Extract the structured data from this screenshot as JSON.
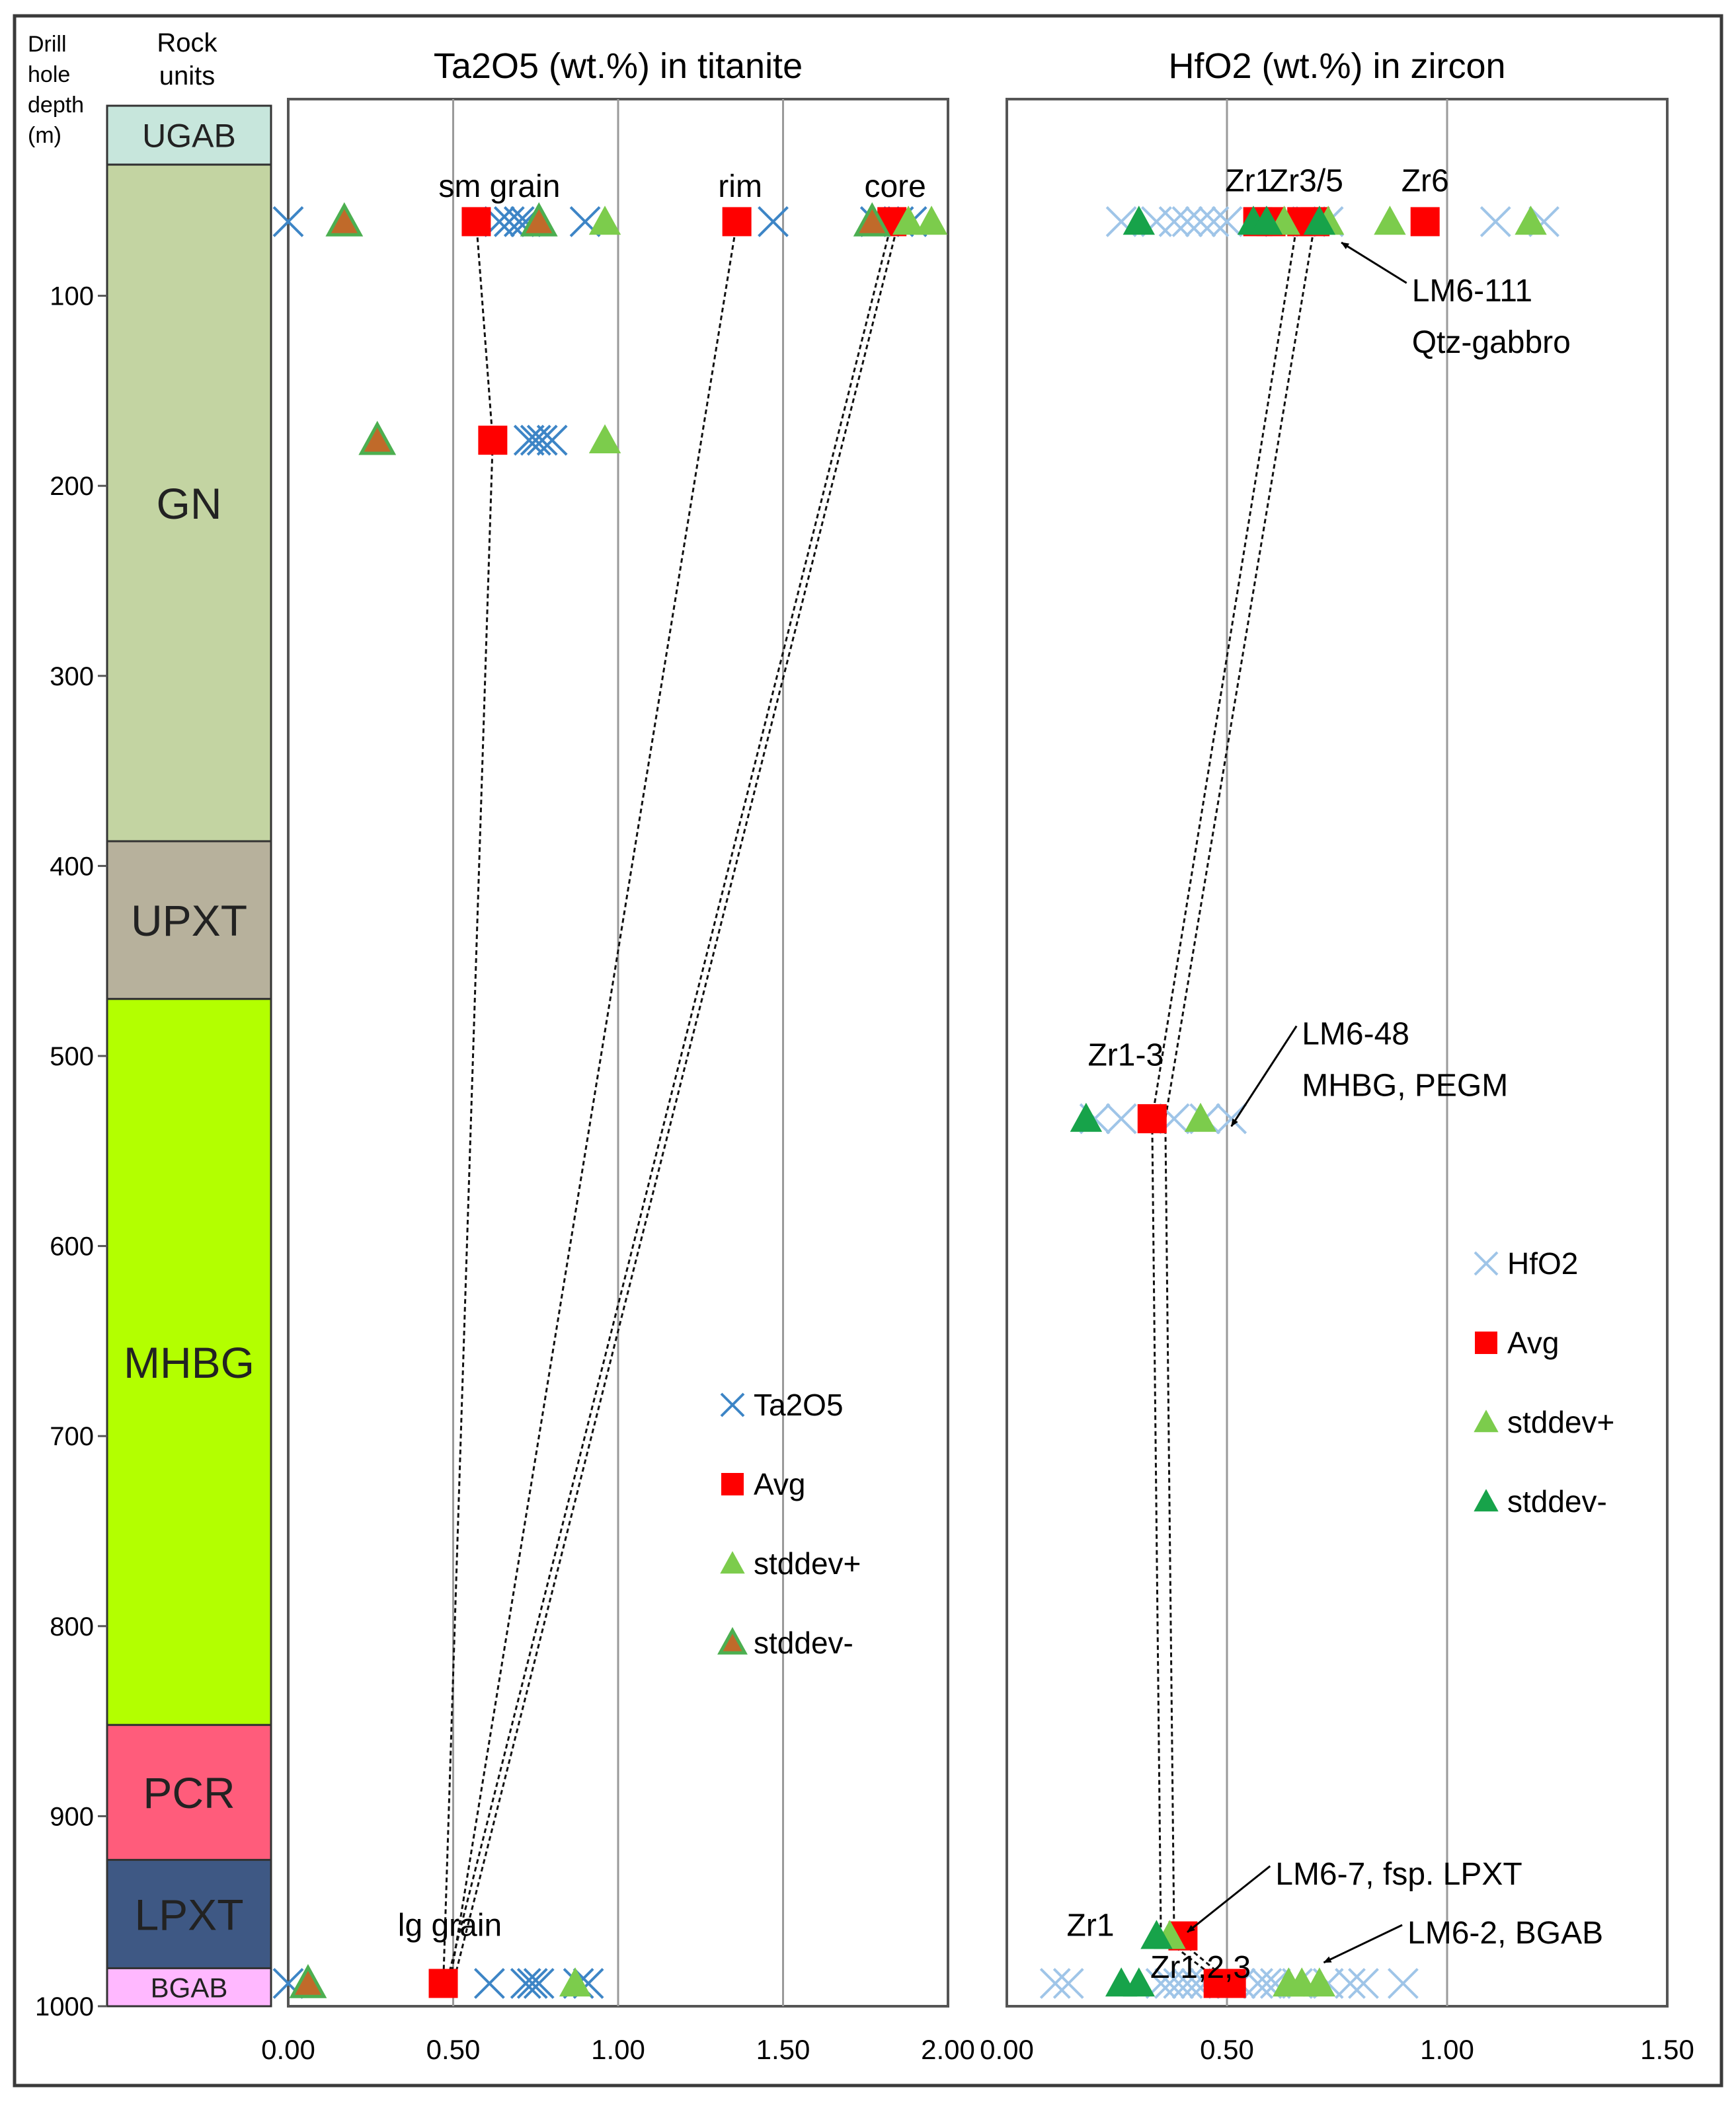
{
  "header": {
    "depth_label": [
      "Drill",
      "hole",
      "depth",
      "(m)"
    ],
    "units_label": [
      "Rock",
      "units"
    ]
  },
  "depth_axis": {
    "ylim": [
      0,
      1000
    ],
    "ticks": [
      100,
      200,
      300,
      400,
      500,
      600,
      700,
      800,
      900,
      1000
    ]
  },
  "rock_units": [
    {
      "name": "UGAB",
      "top": 0,
      "bottom": 31,
      "color": "#c7e6dc"
    },
    {
      "name": "GN",
      "top": 31,
      "bottom": 387,
      "color": "#c3d4a2"
    },
    {
      "name": "UPXT",
      "top": 387,
      "bottom": 470,
      "color": "#b7b19c"
    },
    {
      "name": "MHBG",
      "top": 470,
      "bottom": 852,
      "color": "#b3ff00"
    },
    {
      "name": "PCR",
      "top": 852,
      "bottom": 923,
      "color": "#ff5c7b"
    },
    {
      "name": "LPXT",
      "top": 923,
      "bottom": 980,
      "color": "#3e5884"
    },
    {
      "name": "BGAB",
      "top": 980,
      "bottom": 1000,
      "color": "#ffb8ff"
    }
  ],
  "chart_data": [
    {
      "type": "scatter",
      "title": "Ta2O5 (wt.%) in titanite",
      "xlim": [
        0,
        2
      ],
      "ylim": [
        0,
        1000
      ],
      "xticks": [
        "0.00",
        "0.50",
        "1.00",
        "1.50",
        "2.00"
      ],
      "xtick_values": [
        0,
        0.5,
        1,
        1.5,
        2
      ],
      "legend": {
        "position": "right-center",
        "entries": [
          "Ta2O5",
          "Avg",
          "stddev+",
          "stddev-"
        ]
      },
      "series": [
        {
          "name": "Ta2O5",
          "marker": "x",
          "color": "#3d85c6",
          "points": [
            [
              0.0,
              61
            ],
            [
              0.64,
              61
            ],
            [
              0.67,
              61
            ],
            [
              0.7,
              61
            ],
            [
              0.72,
              61
            ],
            [
              0.9,
              61
            ],
            [
              1.47,
              61
            ],
            [
              1.78,
              61
            ],
            [
              1.85,
              61
            ],
            [
              1.89,
              61
            ],
            [
              0.73,
              176
            ],
            [
              0.75,
              176
            ],
            [
              0.77,
              176
            ],
            [
              0.8,
              176
            ],
            [
              0.0,
              988
            ],
            [
              0.61,
              988
            ],
            [
              0.72,
              988
            ],
            [
              0.74,
              988
            ],
            [
              0.76,
              988
            ],
            [
              0.88,
              988
            ],
            [
              0.91,
              988
            ]
          ]
        },
        {
          "name": "Avg",
          "marker": "square",
          "color": "#ff0000",
          "points": [
            [
              0.57,
              61
            ],
            [
              1.36,
              61
            ],
            [
              1.83,
              61
            ],
            [
              0.62,
              176
            ],
            [
              0.47,
              988
            ]
          ]
        },
        {
          "name": "stddev+",
          "marker": "triangle",
          "color": "#7ccc4c",
          "points": [
            [
              0.96,
              61
            ],
            [
              1.88,
              61
            ],
            [
              1.95,
              61
            ],
            [
              0.96,
              176
            ],
            [
              0.87,
              988
            ]
          ]
        },
        {
          "name": "stddev-",
          "marker": "triangle-outlined",
          "color": "#4caf50",
          "points": [
            [
              0.17,
              61
            ],
            [
              0.76,
              61
            ],
            [
              1.77,
              61
            ],
            [
              0.27,
              176
            ],
            [
              0.06,
              988
            ]
          ]
        }
      ],
      "tie_lines": [
        [
          [
            0.57,
            61
          ],
          [
            0.62,
            176
          ],
          [
            0.47,
            988
          ]
        ],
        [
          [
            1.36,
            61
          ],
          [
            0.49,
            988
          ]
        ],
        [
          [
            1.83,
            61
          ],
          [
            0.48,
            988
          ]
        ],
        [
          [
            1.85,
            61
          ],
          [
            0.5,
            988
          ]
        ]
      ],
      "annotations": [
        {
          "text": "sm grain",
          "x": 0.64,
          "y": 48
        },
        {
          "text": "rim",
          "x": 1.37,
          "y": 48
        },
        {
          "text": "core",
          "x": 1.84,
          "y": 48
        },
        {
          "text": "lg grain",
          "x": 0.49,
          "y": 963
        }
      ]
    },
    {
      "type": "scatter",
      "title": "HfO2 (wt.%) in zircon",
      "xlim": [
        0,
        1.5
      ],
      "ylim": [
        0,
        1000
      ],
      "xticks": [
        "0.00",
        "0.50",
        "1.00",
        "1.50"
      ],
      "xtick_values": [
        0,
        0.5,
        1,
        1.5
      ],
      "legend": {
        "position": "right-center",
        "entries": [
          "HfO2",
          "Avg",
          "stddev+",
          "stddev-"
        ]
      },
      "series": [
        {
          "name": "HfO2",
          "marker": "x",
          "color": "#9fc5e8",
          "points": [
            [
              0.26,
              61
            ],
            [
              0.34,
              61
            ],
            [
              0.38,
              61
            ],
            [
              0.41,
              61
            ],
            [
              0.44,
              61
            ],
            [
              0.47,
              61
            ],
            [
              0.5,
              61
            ],
            [
              0.62,
              61
            ],
            [
              0.69,
              61
            ],
            [
              0.73,
              61
            ],
            [
              1.11,
              61
            ],
            [
              1.22,
              61
            ],
            [
              0.2,
              533
            ],
            [
              0.26,
              533
            ],
            [
              0.38,
              533
            ],
            [
              0.45,
              533
            ],
            [
              0.51,
              533
            ],
            [
              0.11,
              988
            ],
            [
              0.14,
              988
            ],
            [
              0.35,
              988
            ],
            [
              0.37,
              988
            ],
            [
              0.39,
              988
            ],
            [
              0.41,
              988
            ],
            [
              0.43,
              988
            ],
            [
              0.45,
              988
            ],
            [
              0.51,
              988
            ],
            [
              0.53,
              988
            ],
            [
              0.57,
              988
            ],
            [
              0.59,
              988
            ],
            [
              0.61,
              988
            ],
            [
              0.66,
              988
            ],
            [
              0.73,
              988
            ],
            [
              0.78,
              988
            ],
            [
              0.81,
              988
            ],
            [
              0.9,
              988
            ]
          ]
        },
        {
          "name": "Avg",
          "marker": "square",
          "color": "#ff0000",
          "points": [
            [
              0.57,
              61
            ],
            [
              0.6,
              61
            ],
            [
              0.67,
              61
            ],
            [
              0.7,
              61
            ],
            [
              0.95,
              61
            ],
            [
              0.33,
              533
            ],
            [
              0.4,
              963
            ],
            [
              0.48,
              988
            ],
            [
              0.51,
              988
            ]
          ]
        },
        {
          "name": "stddev+",
          "marker": "triangle",
          "color": "#7ccc4c",
          "points": [
            [
              0.63,
              61
            ],
            [
              0.73,
              61
            ],
            [
              0.87,
              61
            ],
            [
              1.19,
              61
            ],
            [
              0.44,
              533
            ],
            [
              0.37,
              963
            ],
            [
              0.64,
              988
            ],
            [
              0.67,
              988
            ],
            [
              0.71,
              988
            ]
          ]
        },
        {
          "name": "stddev-",
          "marker": "triangle",
          "color": "#17a34a",
          "points": [
            [
              0.3,
              61
            ],
            [
              0.56,
              61
            ],
            [
              0.59,
              61
            ],
            [
              0.71,
              61
            ],
            [
              0.18,
              533
            ],
            [
              0.34,
              963
            ],
            [
              0.26,
              988
            ],
            [
              0.3,
              988
            ]
          ]
        }
      ],
      "tie_lines": [
        [
          [
            0.66,
            61
          ],
          [
            0.33,
            533
          ],
          [
            0.35,
            963
          ],
          [
            0.49,
            988
          ]
        ],
        [
          [
            0.7,
            61
          ],
          [
            0.36,
            533
          ],
          [
            0.38,
            963
          ],
          [
            0.51,
            988
          ]
        ]
      ],
      "annotations": [
        {
          "text": "Zr1",
          "x": 0.55,
          "y": 45
        },
        {
          "text": "Zr3/5",
          "x": 0.68,
          "y": 45
        },
        {
          "text": "Zr6",
          "x": 0.95,
          "y": 45
        },
        {
          "text": "Zr1-3",
          "x": 0.27,
          "y": 505
        },
        {
          "text": "Zr1",
          "x": 0.19,
          "y": 963
        },
        {
          "text": "Zr1,2,3",
          "x": 0.44,
          "y": 985
        }
      ],
      "callouts": [
        {
          "lines": [
            "LM6-111",
            "Qtz-gabbro"
          ],
          "text_x": 0.92,
          "text_y": 103,
          "arrow_to": [
            0.76,
            72
          ]
        },
        {
          "lines": [
            "LM6-48",
            "MHBG, PEGM"
          ],
          "text_x": 0.67,
          "text_y": 494,
          "arrow_to": [
            0.51,
            537
          ]
        },
        {
          "lines": [
            "LM6-7, fsp. LPXT"
          ],
          "text_x": 0.61,
          "text_y": 936,
          "arrow_to": [
            0.41,
            961
          ]
        },
        {
          "lines": [
            "LM6-2, BGAB"
          ],
          "text_x": 0.91,
          "text_y": 967,
          "arrow_to": [
            0.72,
            977
          ]
        }
      ]
    }
  ]
}
